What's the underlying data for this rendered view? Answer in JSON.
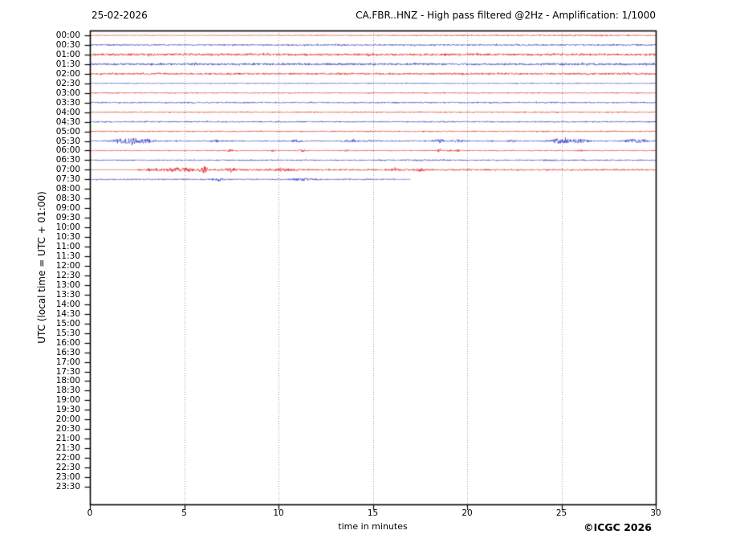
{
  "header": {
    "date_label": "25-02-2026",
    "title": "CA.FBR..HNZ - High pass filtered @2Hz - Amplification: 1/1000"
  },
  "footer": {
    "copyright": "©ICGC 2026"
  },
  "chart_data": {
    "type": "line",
    "subtype": "helicorder-seismogram",
    "date": "25-02-2026",
    "title": "CA.FBR..HNZ - High pass filtered @2Hz - Amplification: 1/1000",
    "xlabel": "time in minutes",
    "ylabel": "UTC (local time = UTC + 01:00)",
    "xlim": [
      0,
      30
    ],
    "x_ticks": [
      0,
      5,
      10,
      15,
      20,
      25,
      30
    ],
    "grid_x": [
      5,
      10,
      15,
      20,
      25
    ],
    "grid": "vertical-dotted",
    "legend": "none",
    "minutes_per_row": 30,
    "colors": {
      "red": "#e00000",
      "blue": "#2020c0",
      "grid": "#999999",
      "axis": "#000000",
      "background": "#ffffff"
    },
    "rows": [
      {
        "label": "00:00",
        "color": "red",
        "amp": 0.4,
        "start": 0,
        "end": 30,
        "events": [
          [
            21,
            8,
            0.3
          ],
          [
            27,
            2.5,
            0.25
          ]
        ]
      },
      {
        "label": "00:30",
        "color": "blue",
        "amp": 0.9,
        "start": 0,
        "end": 30,
        "events": []
      },
      {
        "label": "01:00",
        "color": "red",
        "amp": 1.3,
        "start": 0,
        "end": 30,
        "events": []
      },
      {
        "label": "01:30",
        "color": "blue",
        "amp": 1.3,
        "start": 0,
        "end": 30,
        "events": []
      },
      {
        "label": "02:00",
        "color": "red",
        "amp": 1.1,
        "start": 0,
        "end": 30,
        "events": []
      },
      {
        "label": "02:30",
        "color": "blue",
        "amp": 0.55,
        "start": 0,
        "end": 30,
        "events": []
      },
      {
        "label": "03:00",
        "color": "red",
        "amp": 0.6,
        "start": 0,
        "end": 30,
        "events": []
      },
      {
        "label": "03:30",
        "color": "blue",
        "amp": 0.75,
        "start": 0,
        "end": 30,
        "events": []
      },
      {
        "label": "04:00",
        "color": "red",
        "amp": 0.65,
        "start": 0,
        "end": 30,
        "events": []
      },
      {
        "label": "04:30",
        "color": "blue",
        "amp": 0.75,
        "start": 0,
        "end": 30,
        "events": []
      },
      {
        "label": "05:00",
        "color": "red",
        "amp": 0.65,
        "start": 0,
        "end": 30,
        "events": []
      },
      {
        "label": "05:30",
        "color": "blue",
        "amp": 0.75,
        "start": 0,
        "end": 30,
        "events": [
          [
            1.5,
            0.3,
            1.4
          ],
          [
            2.2,
            0.7,
            2.6
          ],
          [
            3.0,
            0.5,
            1.4
          ],
          [
            6.7,
            0.2,
            1.1
          ],
          [
            11.0,
            0.25,
            1.4
          ],
          [
            13.8,
            0.35,
            1.1
          ],
          [
            14.8,
            0.25,
            0.9
          ],
          [
            18.5,
            0.3,
            1.7
          ],
          [
            19.5,
            0.3,
            1.4
          ],
          [
            22.3,
            0.2,
            0.7
          ],
          [
            24.7,
            0.4,
            1.7
          ],
          [
            25.5,
            0.7,
            2.1
          ],
          [
            26.1,
            0.3,
            1.4
          ],
          [
            28.7,
            0.4,
            1.8
          ],
          [
            29.3,
            0.3,
            1.4
          ]
        ]
      },
      {
        "label": "06:00",
        "color": "red",
        "amp": 0.55,
        "start": 0,
        "end": 30,
        "events": [
          [
            7.4,
            0.15,
            1.4
          ],
          [
            9.7,
            0.1,
            0.9
          ],
          [
            11.3,
            0.2,
            1.1
          ],
          [
            13.6,
            0.1,
            0.9
          ],
          [
            18.5,
            0.12,
            1.6
          ],
          [
            19.05,
            0.1,
            1.2
          ],
          [
            19.5,
            0.1,
            1.1
          ],
          [
            26.0,
            0.1,
            0.8
          ]
        ]
      },
      {
        "label": "06:30",
        "color": "blue",
        "amp": 0.7,
        "start": 0,
        "end": 30,
        "events": [
          [
            17.8,
            1.0,
            0.5
          ],
          [
            24.5,
            0.4,
            0.4
          ]
        ]
      },
      {
        "label": "07:00",
        "color": "red",
        "amp": 0.95,
        "start": 0,
        "end": 30,
        "quiet": [
          [
            0,
            2.5,
            0.25
          ]
        ],
        "events": [
          [
            3.2,
            0.25,
            1.0
          ],
          [
            4.5,
            0.6,
            2.0
          ],
          [
            5.2,
            0.3,
            1.5
          ],
          [
            6.0,
            0.12,
            3.8
          ],
          [
            6.15,
            0.1,
            2.6
          ],
          [
            7.4,
            0.5,
            1.2
          ],
          [
            10.2,
            0.8,
            1.0
          ],
          [
            16.2,
            0.4,
            0.9
          ],
          [
            17.5,
            0.3,
            1.7
          ]
        ]
      },
      {
        "label": "07:30",
        "color": "blue",
        "amp": 0.75,
        "start": 0,
        "end": 17,
        "quiet": [
          [
            16.2,
            17,
            0.4
          ]
        ],
        "events": [
          [
            6.9,
            0.3,
            1.6
          ],
          [
            11.3,
            0.5,
            1.1
          ]
        ]
      },
      {
        "label": "08:00",
        "color": "red",
        "amp": 0,
        "start": null,
        "end": null,
        "events": []
      },
      {
        "label": "08:30",
        "color": "blue",
        "amp": 0,
        "start": null,
        "end": null,
        "events": []
      },
      {
        "label": "09:00",
        "color": "red",
        "amp": 0,
        "start": null,
        "end": null,
        "events": []
      },
      {
        "label": "09:30",
        "color": "blue",
        "amp": 0,
        "start": null,
        "end": null,
        "events": []
      },
      {
        "label": "10:00",
        "color": "red",
        "amp": 0,
        "start": null,
        "end": null,
        "events": []
      },
      {
        "label": "10:30",
        "color": "blue",
        "amp": 0,
        "start": null,
        "end": null,
        "events": []
      },
      {
        "label": "11:00",
        "color": "red",
        "amp": 0,
        "start": null,
        "end": null,
        "events": []
      },
      {
        "label": "11:30",
        "color": "blue",
        "amp": 0,
        "start": null,
        "end": null,
        "events": []
      },
      {
        "label": "12:00",
        "color": "red",
        "amp": 0,
        "start": null,
        "end": null,
        "events": []
      },
      {
        "label": "12:30",
        "color": "blue",
        "amp": 0,
        "start": null,
        "end": null,
        "events": []
      },
      {
        "label": "13:00",
        "color": "red",
        "amp": 0,
        "start": null,
        "end": null,
        "events": []
      },
      {
        "label": "13:30",
        "color": "blue",
        "amp": 0,
        "start": null,
        "end": null,
        "events": []
      },
      {
        "label": "14:00",
        "color": "red",
        "amp": 0,
        "start": null,
        "end": null,
        "events": []
      },
      {
        "label": "14:30",
        "color": "blue",
        "amp": 0,
        "start": null,
        "end": null,
        "events": []
      },
      {
        "label": "15:00",
        "color": "red",
        "amp": 0,
        "start": null,
        "end": null,
        "events": []
      },
      {
        "label": "15:30",
        "color": "blue",
        "amp": 0,
        "start": null,
        "end": null,
        "events": []
      },
      {
        "label": "16:00",
        "color": "red",
        "amp": 0,
        "start": null,
        "end": null,
        "events": []
      },
      {
        "label": "16:30",
        "color": "blue",
        "amp": 0,
        "start": null,
        "end": null,
        "events": []
      },
      {
        "label": "17:00",
        "color": "red",
        "amp": 0,
        "start": null,
        "end": null,
        "events": []
      },
      {
        "label": "17:30",
        "color": "blue",
        "amp": 0,
        "start": null,
        "end": null,
        "events": []
      },
      {
        "label": "18:00",
        "color": "red",
        "amp": 0,
        "start": null,
        "end": null,
        "events": []
      },
      {
        "label": "18:30",
        "color": "blue",
        "amp": 0,
        "start": null,
        "end": null,
        "events": []
      },
      {
        "label": "19:00",
        "color": "red",
        "amp": 0,
        "start": null,
        "end": null,
        "events": []
      },
      {
        "label": "19:30",
        "color": "blue",
        "amp": 0,
        "start": null,
        "end": null,
        "events": []
      },
      {
        "label": "20:00",
        "color": "red",
        "amp": 0,
        "start": null,
        "end": null,
        "events": []
      },
      {
        "label": "20:30",
        "color": "blue",
        "amp": 0,
        "start": null,
        "end": null,
        "events": []
      },
      {
        "label": "21:00",
        "color": "red",
        "amp": 0,
        "start": null,
        "end": null,
        "events": []
      },
      {
        "label": "21:30",
        "color": "blue",
        "amp": 0,
        "start": null,
        "end": null,
        "events": []
      },
      {
        "label": "22:00",
        "color": "red",
        "amp": 0,
        "start": null,
        "end": null,
        "events": []
      },
      {
        "label": "22:30",
        "color": "blue",
        "amp": 0,
        "start": null,
        "end": null,
        "events": []
      },
      {
        "label": "23:00",
        "color": "red",
        "amp": 0,
        "start": null,
        "end": null,
        "events": []
      },
      {
        "label": "23:30",
        "color": "blue",
        "amp": 0,
        "start": null,
        "end": null,
        "events": []
      }
    ]
  }
}
